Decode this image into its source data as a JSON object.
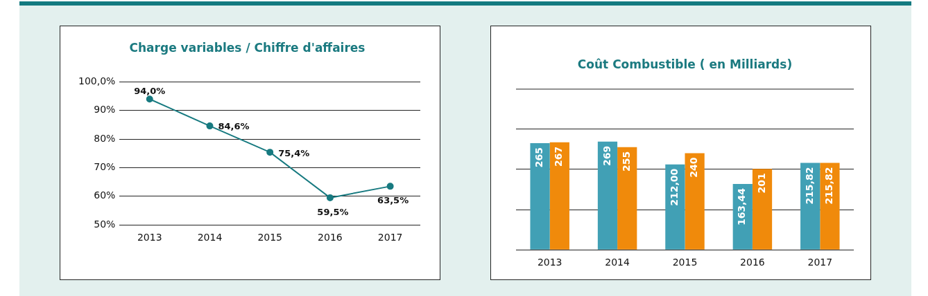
{
  "chart_data": [
    {
      "type": "line",
      "title": "Charge variables / Chiffre d'affaires",
      "categories": [
        "2013",
        "2014",
        "2015",
        "2016",
        "2017"
      ],
      "values": [
        94.0,
        84.6,
        75.4,
        59.5,
        63.5
      ],
      "color": "#177a80",
      "marker": "circle",
      "value_labels": [
        "94,0%",
        "84,6%",
        "75,4%",
        "59,5%",
        "63,5%"
      ],
      "ylim": [
        50,
        100
      ],
      "yticks": [
        {
          "value": 50,
          "label": "50%"
        },
        {
          "value": 60,
          "label": "60%"
        },
        {
          "value": 70,
          "label": "70%"
        },
        {
          "value": 80,
          "label": "80%"
        },
        {
          "value": 90,
          "label": "90%"
        },
        {
          "value": 100,
          "label": "100,0%"
        }
      ],
      "grid": "y"
    },
    {
      "type": "bar",
      "title": "Coût Combustible ( en Milliards)",
      "categories": [
        "2013",
        "2014",
        "2015",
        "2016",
        "2017"
      ],
      "series": [
        {
          "color": "#41a0b5",
          "values": [
            265,
            269,
            212.0,
            163.44,
            215.82
          ],
          "value_labels": [
            "265",
            "269",
            "212,00",
            "163,44",
            "215,82"
          ]
        },
        {
          "color": "#f08a0b",
          "values": [
            267,
            255,
            240,
            201,
            215.82
          ],
          "value_labels": [
            "267",
            "255",
            "240",
            "201",
            "215,82"
          ]
        }
      ],
      "ylim": [
        0,
        400
      ],
      "yticks": [
        {
          "value": 0,
          "label": null
        },
        {
          "value": 100,
          "label": null
        },
        {
          "value": 200,
          "label": null
        },
        {
          "value": 300,
          "label": null
        }
      ],
      "grid": "y",
      "tick_labels": "x"
    }
  ]
}
